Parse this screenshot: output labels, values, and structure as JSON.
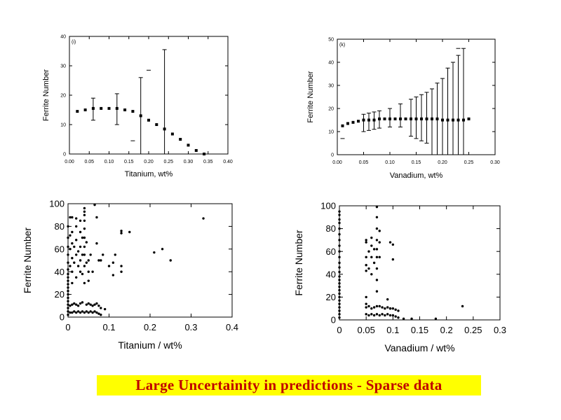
{
  "banner": {
    "text": "Large Uncertainity in predictions -  Sparse data",
    "text_color": "#c00000",
    "bg_color": "#ffff00"
  },
  "chart_data": [
    {
      "type": "scatter",
      "panel_label": "(i)",
      "xlabel": "Titanium, wt%",
      "ylabel": "Ferrite Number",
      "xlim": [
        0,
        0.4
      ],
      "ylim": [
        0,
        40
      ],
      "xticks": [
        "0.00",
        "0.05",
        "0.10",
        "0.15",
        "0.20",
        "0.25",
        "0.30",
        "0.35",
        "0.40"
      ],
      "yticks": [
        "0",
        "10",
        "20",
        "30",
        "40"
      ],
      "grid": false,
      "series": [
        {
          "marker": "square",
          "x": [
            0.02,
            0.04,
            0.06,
            0.08,
            0.1,
            0.12,
            0.14,
            0.16,
            0.18,
            0.2,
            0.22,
            0.24,
            0.26,
            0.28,
            0.3,
            0.32,
            0.34
          ],
          "y": [
            14.5,
            15,
            15.5,
            15.5,
            15.5,
            15.5,
            15,
            14.5,
            13,
            11.5,
            10,
            8.5,
            6.8,
            5,
            3,
            1.2,
            0
          ]
        }
      ],
      "error_bars": [
        {
          "x": 0.06,
          "low": 11.5,
          "high": 19
        },
        {
          "x": 0.12,
          "low": 10,
          "high": 20.5
        },
        {
          "x": 0.18,
          "low": 0,
          "high": 26
        },
        {
          "x": 0.24,
          "low": 0,
          "high": 35.5
        }
      ],
      "extra_dashes": [
        {
          "x": 0.16,
          "y": 4.5
        },
        {
          "x": 0.2,
          "y": 28.5
        }
      ]
    },
    {
      "type": "scatter",
      "panel_label": "(k)",
      "xlabel": "Vanadium, wt%",
      "ylabel": "Ferrite Number",
      "xlim": [
        0,
        0.3
      ],
      "ylim": [
        0,
        50
      ],
      "xticks": [
        "0.00",
        "0.05",
        "0.10",
        "0.15",
        "0.20",
        "0.25",
        "0.30"
      ],
      "yticks": [
        "0",
        "10",
        "20",
        "30",
        "40",
        "50"
      ],
      "grid": false,
      "series": [
        {
          "marker": "square",
          "x": [
            0.01,
            0.02,
            0.03,
            0.04,
            0.05,
            0.06,
            0.07,
            0.08,
            0.09,
            0.1,
            0.11,
            0.12,
            0.13,
            0.14,
            0.15,
            0.16,
            0.17,
            0.18,
            0.19,
            0.2,
            0.21,
            0.22,
            0.23,
            0.24,
            0.25
          ],
          "y": [
            12.5,
            13.5,
            14,
            14.5,
            15,
            15,
            15,
            15.5,
            15.5,
            15.5,
            15.5,
            15.5,
            15.5,
            15.5,
            15.5,
            15.5,
            15.5,
            15.5,
            15.5,
            15,
            15,
            15,
            15,
            15,
            15.5
          ]
        }
      ],
      "error_bars": [
        {
          "x": 0.05,
          "low": 10,
          "high": 17.5
        },
        {
          "x": 0.06,
          "low": 10.5,
          "high": 18
        },
        {
          "x": 0.07,
          "low": 11,
          "high": 18.5
        },
        {
          "x": 0.08,
          "low": 11.5,
          "high": 19
        },
        {
          "x": 0.1,
          "low": 12,
          "high": 20
        },
        {
          "x": 0.12,
          "low": 12,
          "high": 22
        },
        {
          "x": 0.14,
          "low": 8,
          "high": 24
        },
        {
          "x": 0.15,
          "low": 7,
          "high": 25
        },
        {
          "x": 0.16,
          "low": 6,
          "high": 26
        },
        {
          "x": 0.17,
          "low": 5,
          "high": 27
        },
        {
          "x": 0.18,
          "low": 0,
          "high": 28.5
        },
        {
          "x": 0.19,
          "low": 0,
          "high": 31
        },
        {
          "x": 0.2,
          "low": 0,
          "high": 33
        },
        {
          "x": 0.21,
          "low": 0,
          "high": 37.5
        },
        {
          "x": 0.22,
          "low": 0,
          "high": 40
        },
        {
          "x": 0.23,
          "low": 0,
          "high": 43
        },
        {
          "x": 0.24,
          "low": 0,
          "high": 46
        }
      ],
      "extra_dashes": [
        {
          "x": 0.01,
          "y": 7
        },
        {
          "x": 0.23,
          "y": 46
        }
      ]
    },
    {
      "type": "scatter",
      "xlabel": "Titanium / wt%",
      "ylabel": "Ferrite Number",
      "xlim": [
        0,
        0.4
      ],
      "ylim": [
        0,
        100
      ],
      "xticks": [
        "0",
        "0.1",
        "0.2",
        "0.3",
        "0.4"
      ],
      "yticks": [
        "0",
        "20",
        "40",
        "60",
        "80",
        "100"
      ],
      "grid": false,
      "series": [
        {
          "marker": "dot",
          "x": [
            0,
            0,
            0,
            0,
            0,
            0,
            0,
            0,
            0,
            0,
            0,
            0,
            0,
            0,
            0,
            0,
            0,
            0,
            0,
            0.005,
            0.005,
            0.005,
            0.005,
            0.01,
            0.01,
            0.01,
            0.01,
            0.01,
            0.01,
            0.015,
            0.015,
            0.02,
            0.02,
            0.02,
            0.02,
            0.02,
            0.025,
            0.025,
            0.03,
            0.03,
            0.03,
            0.03,
            0.03,
            0.035,
            0.035,
            0.035,
            0.04,
            0.04,
            0.04,
            0.04,
            0.04,
            0.04,
            0.04,
            0.04,
            0.04,
            0.04,
            0.045,
            0.045,
            0.05,
            0.05,
            0.05,
            0.055,
            0.06,
            0.065,
            0.07,
            0.07,
            0.075,
            0.08,
            0.085,
            0.1,
            0.11,
            0.11,
            0.115,
            0.13,
            0.13,
            0.13,
            0.13,
            0.15,
            0.21,
            0.23,
            0.25,
            0.33,
            0.005,
            0.01,
            0.015,
            0.02,
            0.025,
            0.03,
            0.035,
            0.045,
            0.05,
            0.055,
            0.06,
            0.065,
            0.07,
            0.075,
            0.08,
            0.09,
            0.005,
            0.01,
            0.015,
            0.02,
            0.025,
            0.03,
            0.035,
            0.04,
            0.045,
            0.05,
            0.055,
            0.06,
            0.065,
            0.07,
            0.075,
            0.08
          ],
          "y": [
            2,
            5,
            8,
            11,
            14,
            17,
            20,
            23,
            26,
            29,
            32,
            35,
            38,
            42,
            48,
            55,
            62,
            70,
            80,
            45,
            60,
            72,
            88,
            30,
            40,
            52,
            65,
            75,
            88,
            48,
            62,
            35,
            55,
            68,
            80,
            87,
            45,
            58,
            40,
            50,
            62,
            75,
            85,
            38,
            55,
            70,
            30,
            45,
            55,
            62,
            70,
            78,
            85,
            90,
            93,
            96,
            48,
            66,
            32,
            40,
            50,
            55,
            40,
            99,
            65,
            88,
            50,
            50,
            55,
            45,
            48,
            37,
            55,
            40,
            45,
            74,
            76,
            75,
            57,
            60,
            50,
            87,
            10,
            11,
            12,
            11,
            10,
            12,
            13,
            11,
            12,
            11,
            10,
            11,
            12,
            10,
            8,
            7,
            4,
            4,
            5,
            4,
            5,
            4,
            5,
            4,
            5,
            4,
            5,
            4,
            5,
            4,
            3,
            2
          ]
        }
      ]
    },
    {
      "type": "scatter",
      "xlabel": "Vanadium / wt%",
      "ylabel": "Ferrite Number",
      "xlim": [
        0,
        0.3
      ],
      "ylim": [
        0,
        100
      ],
      "xticks": [
        "0",
        "0.05",
        "0.1",
        "0.15",
        "0.2",
        "0.25",
        "0.3"
      ],
      "yticks": [
        "0",
        "20",
        "40",
        "60",
        "80",
        "100"
      ],
      "grid": false,
      "series": [
        {
          "marker": "dot",
          "x": [
            0,
            0,
            0,
            0,
            0,
            0,
            0,
            0,
            0,
            0,
            0,
            0,
            0,
            0,
            0,
            0,
            0,
            0,
            0,
            0,
            0,
            0,
            0,
            0,
            0,
            0,
            0.05,
            0.05,
            0.05,
            0.05,
            0.05,
            0.05,
            0.05,
            0.055,
            0.055,
            0.06,
            0.06,
            0.06,
            0.06,
            0.065,
            0.065,
            0.07,
            0.07,
            0.07,
            0.07,
            0.07,
            0.07,
            0.07,
            0.07,
            0.07,
            0.075,
            0.075,
            0.075,
            0.09,
            0.095,
            0.095,
            0.1,
            0.1,
            0.18,
            0.23,
            0.05,
            0.055,
            0.06,
            0.065,
            0.07,
            0.075,
            0.08,
            0.085,
            0.09,
            0.095,
            0.1,
            0.105,
            0.11,
            0.05,
            0.055,
            0.06,
            0.065,
            0.07,
            0.075,
            0.08,
            0.085,
            0.09,
            0.095,
            0.1,
            0.105,
            0.11,
            0.12,
            0.135
          ],
          "y": [
            2,
            5,
            8,
            11,
            14,
            17,
            20,
            23,
            26,
            29,
            32,
            35,
            38,
            42,
            46,
            50,
            55,
            60,
            65,
            70,
            75,
            80,
            85,
            88,
            92,
            95,
            14,
            20,
            43,
            48,
            55,
            68,
            70,
            45,
            60,
            40,
            55,
            65,
            72,
            50,
            62,
            25,
            35,
            45,
            55,
            62,
            70,
            80,
            90,
            99,
            55,
            68,
            78,
            18,
            10,
            68,
            53,
            66,
            1,
            12,
            11,
            12,
            10,
            11,
            12,
            12,
            11,
            10,
            11,
            10,
            10,
            9,
            8,
            5,
            4,
            5,
            4,
            5,
            4,
            5,
            4,
            5,
            4,
            4,
            3,
            2,
            1,
            1
          ]
        }
      ]
    }
  ]
}
